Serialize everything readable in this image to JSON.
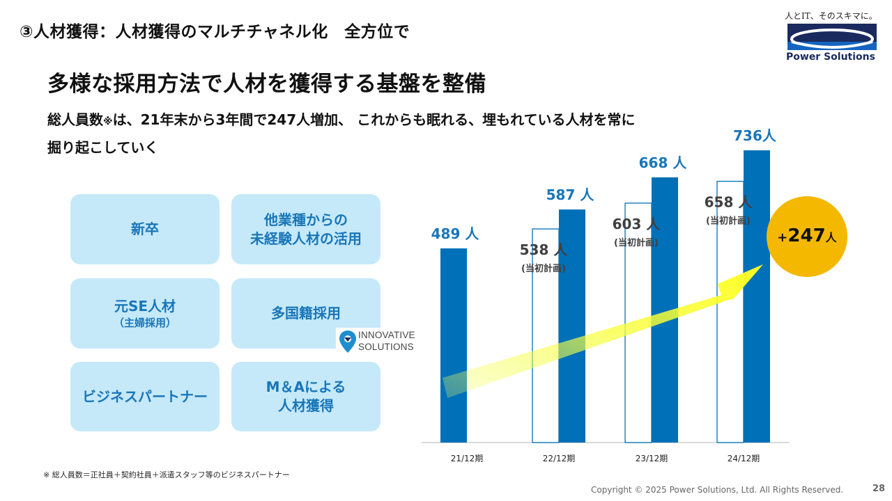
{
  "header": {
    "section_title": "③人材獲得：人材獲得のマルチチャネル化　全方位で",
    "main_heading": "多様な採用方法で人材を獲得する基盤を整備",
    "subtitle_line1_a": "総人員数",
    "subtitle_mark": "※",
    "subtitle_line1_b": "は、21年末から3年間で247人増加、 これからも眠れる、埋もれている人材を常に",
    "subtitle_line2": "掘り起こしていく"
  },
  "logo": {
    "tagline": "人とIT、そのスキマに。",
    "brand": "Power Solutions",
    "colors": {
      "navy": "#1a2a5e",
      "blue": "#1565c0"
    }
  },
  "methods": [
    {
      "line1": "新卒",
      "line2": "",
      "sub": ""
    },
    {
      "line1": "他業種からの",
      "line2": "未経験人材の活用",
      "sub": ""
    },
    {
      "line1": "元SE人材",
      "line2": "",
      "sub": "（主婦採用）"
    },
    {
      "line1": "多国籍採用",
      "line2": "",
      "sub": ""
    },
    {
      "line1": "ビジネスパートナー",
      "line2": "",
      "sub": ""
    },
    {
      "line1": "M＆Aによる",
      "line2": "人材獲得",
      "sub": ""
    }
  ],
  "innovative_badge": {
    "line1": "INNOVATIVE",
    "line2": "SOLUTIONS",
    "icon": "location-pin-icon"
  },
  "chart_data": {
    "type": "bar",
    "categories": [
      "21/12期",
      "22/12期",
      "23/12期",
      "24/12期"
    ],
    "series": [
      {
        "values": [
          null,
          538,
          603,
          658
        ],
        "labels": [
          "",
          "538 人",
          "603 人",
          "658 人"
        ],
        "sublabel": "(当初計画)",
        "style": "outline"
      },
      {
        "values": [
          489,
          587,
          668,
          736
        ],
        "labels": [
          "489 人",
          "587 人",
          "668 人",
          "736人"
        ],
        "style": "filled"
      }
    ],
    "ylim": [
      0,
      800
    ],
    "callout": {
      "prefix": "+",
      "value": "247",
      "unit": "人"
    },
    "colors": {
      "bar": "#0070b8",
      "outline": "#0070b8",
      "label": "#1976b8",
      "plan_label": "#404040",
      "callout": "#f5b800"
    }
  },
  "footer": {
    "footnote": "※ 総人員数＝正社員＋契約社員＋派遣スタッフ等のビジネスパートナー",
    "copyright": "Copyright © 2025 Power Solutions, Ltd. All Rights Reserved.",
    "page_number": "28"
  }
}
